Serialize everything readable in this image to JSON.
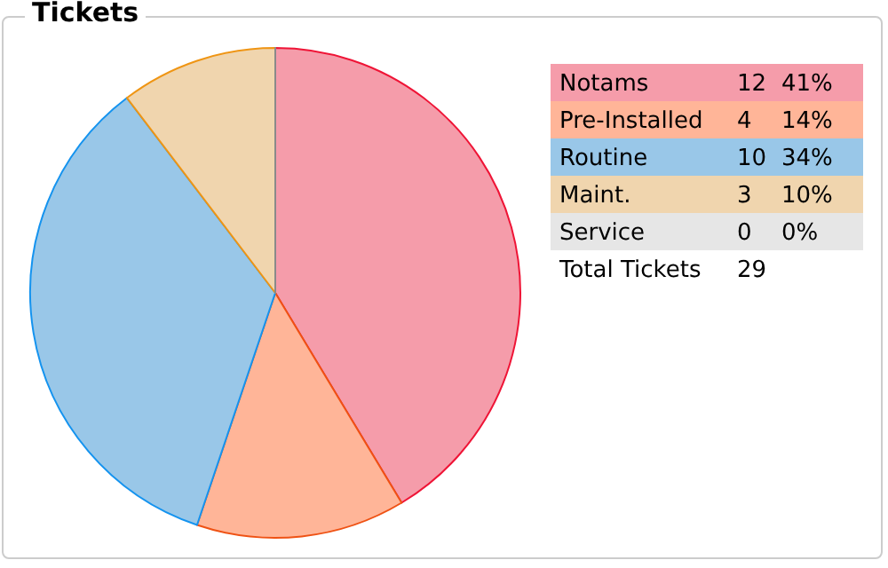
{
  "chart_data": {
    "type": "pie",
    "title": "Tickets",
    "categories": [
      "Notams",
      "Pre-Installed",
      "Routine",
      "Maint.",
      "Service"
    ],
    "values": [
      12,
      4,
      10,
      3,
      0
    ],
    "colors": [
      "#f59caa",
      "#ffb598",
      "#99c7e8",
      "#f0d5ae",
      "#e6e6e6"
    ],
    "value_labels": [
      "12",
      "4",
      "10",
      "3",
      "0"
    ],
    "annotations": [
      "41%",
      "14%",
      "34%",
      "10%",
      "0%",
      "Total Tickets"
    ],
    "totals": [
      "29"
    ],
    "legend": "right"
  }
}
